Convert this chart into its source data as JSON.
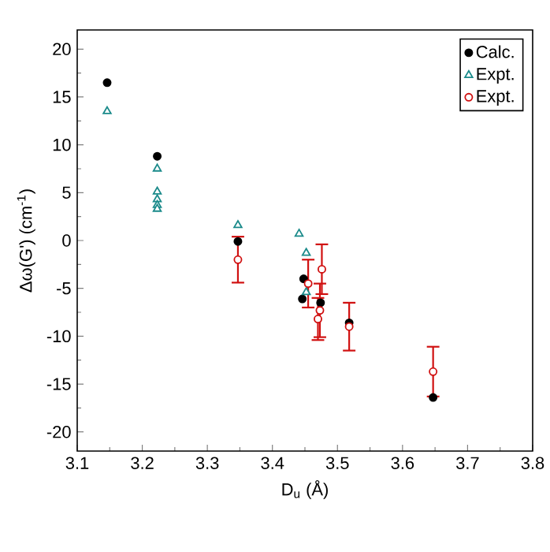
{
  "chart_data": {
    "type": "scatter",
    "xlabel": "D$_{u}$ (Å)",
    "ylabel": "Δω(G') (cm$^{-1}$)",
    "xlim": [
      3.1,
      3.8
    ],
    "ylim": [
      -22,
      22
    ],
    "xticks": [
      3.1,
      3.2,
      3.3,
      3.4,
      3.5,
      3.6,
      3.7,
      3.8
    ],
    "yticks": [
      -20,
      -15,
      -10,
      -5,
      0,
      5,
      10,
      15,
      20
    ],
    "grid": false,
    "legend": "top right",
    "series": [
      {
        "name": "Calc.",
        "color": "#000000",
        "marker": "circle",
        "x": [
          3.146,
          3.223,
          3.347,
          3.448,
          3.446,
          3.474,
          3.518,
          3.647
        ],
        "values": [
          16.5,
          8.8,
          -0.1,
          -4.0,
          -6.1,
          -6.5,
          -8.6,
          -16.4
        ]
      },
      {
        "name": "Expt.",
        "color": "#1a8a8a",
        "marker": "triangle",
        "x": [
          3.146,
          3.223,
          3.223,
          3.223,
          3.223,
          3.223,
          3.347,
          3.441,
          3.452,
          3.452
        ],
        "values": [
          13.5,
          7.5,
          5.1,
          4.3,
          3.7,
          3.3,
          1.6,
          0.7,
          -1.3,
          -5.4
        ]
      },
      {
        "name": "Expt.",
        "color": "#d01010",
        "marker": "circle",
        "x": [
          3.347,
          3.455,
          3.476,
          3.473,
          3.47,
          3.518,
          3.647
        ],
        "values": [
          -2.0,
          -4.5,
          -3.0,
          -7.3,
          -8.2,
          -9.0,
          -13.7
        ],
        "errors": [
          2.4,
          2.5,
          2.6,
          2.8,
          2.2,
          2.5,
          2.6
        ]
      }
    ]
  }
}
